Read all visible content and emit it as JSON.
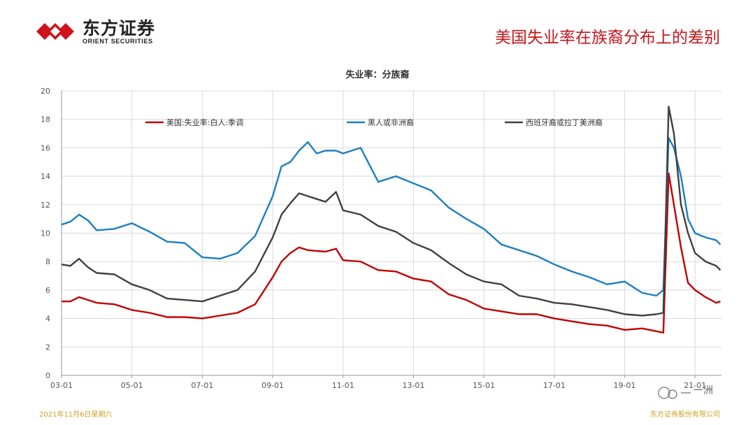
{
  "header": {
    "logo_cn": "东方证券",
    "logo_en": "ORIENT SECURITIES",
    "slide_title": "美国失业率在族裔分布上的差别"
  },
  "footer": {
    "date": "2021年11月6日星期六",
    "company": "东方证券股份有限公司"
  },
  "watermark": {
    "text": "一洲"
  },
  "colors": {
    "white": "#c00000",
    "black": "#1a7fc1",
    "hispanic": "#404040",
    "brand": "#c4161c"
  },
  "chart_data": {
    "type": "line",
    "title": "失业率：分族裔",
    "xlabel": "",
    "ylabel": "",
    "ylim": [
      0,
      20
    ],
    "yticks": [
      0,
      2,
      4,
      6,
      8,
      10,
      12,
      14,
      16,
      18,
      20
    ],
    "xlim": [
      2003.0,
      2021.75
    ],
    "xticks": [
      {
        "label": "03-01",
        "x": 2003.0
      },
      {
        "label": "05-01",
        "x": 2005.0
      },
      {
        "label": "07-01",
        "x": 2007.0
      },
      {
        "label": "09-01",
        "x": 2009.0
      },
      {
        "label": "11-01",
        "x": 2011.0
      },
      {
        "label": "13-01",
        "x": 2013.0
      },
      {
        "label": "15-01",
        "x": 2015.0
      },
      {
        "label": "17-01",
        "x": 2017.0
      },
      {
        "label": "19-01",
        "x": 2019.0
      },
      {
        "label": "21-01",
        "x": 2021.0
      }
    ],
    "grid": true,
    "legend_position": "top",
    "series": [
      {
        "name": "美国:失业率:白人:季调",
        "color": "#c00000",
        "points": [
          [
            2003.0,
            5.2
          ],
          [
            2003.25,
            5.2
          ],
          [
            2003.5,
            5.5
          ],
          [
            2003.75,
            5.3
          ],
          [
            2004.0,
            5.1
          ],
          [
            2004.5,
            5.0
          ],
          [
            2005.0,
            4.6
          ],
          [
            2005.5,
            4.4
          ],
          [
            2006.0,
            4.1
          ],
          [
            2006.5,
            4.1
          ],
          [
            2007.0,
            4.0
          ],
          [
            2007.5,
            4.2
          ],
          [
            2008.0,
            4.4
          ],
          [
            2008.5,
            5.0
          ],
          [
            2009.0,
            6.9
          ],
          [
            2009.25,
            8.0
          ],
          [
            2009.5,
            8.6
          ],
          [
            2009.75,
            9.0
          ],
          [
            2010.0,
            8.8
          ],
          [
            2010.5,
            8.7
          ],
          [
            2010.8,
            8.9
          ],
          [
            2011.0,
            8.1
          ],
          [
            2011.5,
            8.0
          ],
          [
            2012.0,
            7.4
          ],
          [
            2012.5,
            7.3
          ],
          [
            2013.0,
            6.8
          ],
          [
            2013.5,
            6.6
          ],
          [
            2014.0,
            5.7
          ],
          [
            2014.5,
            5.3
          ],
          [
            2015.0,
            4.7
          ],
          [
            2015.5,
            4.5
          ],
          [
            2016.0,
            4.3
          ],
          [
            2016.5,
            4.3
          ],
          [
            2017.0,
            4.0
          ],
          [
            2017.5,
            3.8
          ],
          [
            2018.0,
            3.6
          ],
          [
            2018.5,
            3.5
          ],
          [
            2019.0,
            3.2
          ],
          [
            2019.5,
            3.3
          ],
          [
            2019.9,
            3.1
          ],
          [
            2020.1,
            3.0
          ],
          [
            2020.25,
            14.2
          ],
          [
            2020.4,
            12.0
          ],
          [
            2020.6,
            9.0
          ],
          [
            2020.8,
            6.5
          ],
          [
            2021.0,
            6.0
          ],
          [
            2021.3,
            5.5
          ],
          [
            2021.6,
            5.1
          ],
          [
            2021.72,
            5.2
          ]
        ]
      },
      {
        "name": "黑人或非洲裔",
        "color": "#1a7fc1",
        "points": [
          [
            2003.0,
            10.6
          ],
          [
            2003.25,
            10.8
          ],
          [
            2003.5,
            11.3
          ],
          [
            2003.75,
            10.9
          ],
          [
            2004.0,
            10.2
          ],
          [
            2004.5,
            10.3
          ],
          [
            2005.0,
            10.7
          ],
          [
            2005.5,
            10.1
          ],
          [
            2006.0,
            9.4
          ],
          [
            2006.5,
            9.3
          ],
          [
            2007.0,
            8.3
          ],
          [
            2007.5,
            8.2
          ],
          [
            2008.0,
            8.6
          ],
          [
            2008.5,
            9.8
          ],
          [
            2009.0,
            12.6
          ],
          [
            2009.25,
            14.7
          ],
          [
            2009.5,
            15.0
          ],
          [
            2009.75,
            15.8
          ],
          [
            2010.0,
            16.4
          ],
          [
            2010.25,
            15.6
          ],
          [
            2010.5,
            15.8
          ],
          [
            2010.8,
            15.8
          ],
          [
            2011.0,
            15.6
          ],
          [
            2011.5,
            16.0
          ],
          [
            2012.0,
            13.6
          ],
          [
            2012.5,
            14.0
          ],
          [
            2013.0,
            13.5
          ],
          [
            2013.5,
            13.0
          ],
          [
            2014.0,
            11.8
          ],
          [
            2014.5,
            11.0
          ],
          [
            2015.0,
            10.3
          ],
          [
            2015.5,
            9.2
          ],
          [
            2016.0,
            8.8
          ],
          [
            2016.5,
            8.4
          ],
          [
            2017.0,
            7.8
          ],
          [
            2017.5,
            7.3
          ],
          [
            2018.0,
            6.9
          ],
          [
            2018.5,
            6.4
          ],
          [
            2019.0,
            6.6
          ],
          [
            2019.5,
            5.8
          ],
          [
            2019.9,
            5.6
          ],
          [
            2020.1,
            6.0
          ],
          [
            2020.25,
            16.7
          ],
          [
            2020.4,
            16.0
          ],
          [
            2020.6,
            14.0
          ],
          [
            2020.8,
            11.0
          ],
          [
            2021.0,
            10.0
          ],
          [
            2021.3,
            9.7
          ],
          [
            2021.6,
            9.5
          ],
          [
            2021.72,
            9.2
          ]
        ]
      },
      {
        "name": "西班牙裔或拉丁美洲裔",
        "color": "#404040",
        "points": [
          [
            2003.0,
            7.8
          ],
          [
            2003.25,
            7.7
          ],
          [
            2003.5,
            8.2
          ],
          [
            2003.75,
            7.6
          ],
          [
            2004.0,
            7.2
          ],
          [
            2004.5,
            7.1
          ],
          [
            2005.0,
            6.4
          ],
          [
            2005.5,
            6.0
          ],
          [
            2006.0,
            5.4
          ],
          [
            2006.5,
            5.3
          ],
          [
            2007.0,
            5.2
          ],
          [
            2007.5,
            5.6
          ],
          [
            2008.0,
            6.0
          ],
          [
            2008.5,
            7.3
          ],
          [
            2009.0,
            9.7
          ],
          [
            2009.25,
            11.3
          ],
          [
            2009.5,
            12.1
          ],
          [
            2009.75,
            12.8
          ],
          [
            2010.0,
            12.6
          ],
          [
            2010.25,
            12.4
          ],
          [
            2010.5,
            12.2
          ],
          [
            2010.8,
            12.9
          ],
          [
            2011.0,
            11.6
          ],
          [
            2011.5,
            11.3
          ],
          [
            2012.0,
            10.5
          ],
          [
            2012.5,
            10.1
          ],
          [
            2013.0,
            9.3
          ],
          [
            2013.5,
            8.8
          ],
          [
            2014.0,
            7.9
          ],
          [
            2014.5,
            7.1
          ],
          [
            2015.0,
            6.6
          ],
          [
            2015.5,
            6.4
          ],
          [
            2016.0,
            5.6
          ],
          [
            2016.5,
            5.4
          ],
          [
            2017.0,
            5.1
          ],
          [
            2017.5,
            5.0
          ],
          [
            2018.0,
            4.8
          ],
          [
            2018.5,
            4.6
          ],
          [
            2019.0,
            4.3
          ],
          [
            2019.5,
            4.2
          ],
          [
            2019.9,
            4.3
          ],
          [
            2020.1,
            4.4
          ],
          [
            2020.25,
            18.9
          ],
          [
            2020.4,
            17.0
          ],
          [
            2020.6,
            12.0
          ],
          [
            2020.8,
            10.0
          ],
          [
            2021.0,
            8.6
          ],
          [
            2021.3,
            8.0
          ],
          [
            2021.6,
            7.7
          ],
          [
            2021.72,
            7.4
          ]
        ]
      }
    ]
  }
}
